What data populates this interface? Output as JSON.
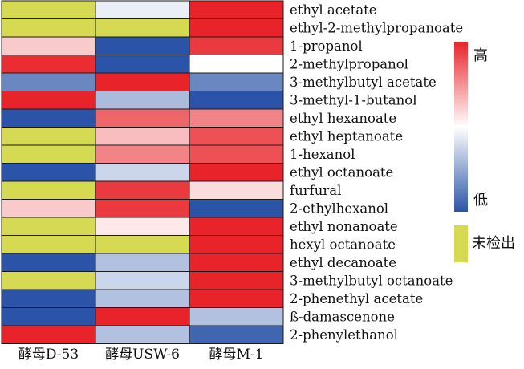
{
  "chart_data": {
    "type": "heatmap",
    "columns": [
      "酵母D-53",
      "酵母USW-6",
      "酵母M-1"
    ],
    "rows": [
      "ethyl acetate",
      "ethyl-2-methylpropanoate",
      "1-propanol",
      "2-methylpropanol",
      "3-methylbutyl acetate",
      "3-methyl-1-butanol",
      "ethyl hexanoate",
      "ethyl heptanoate",
      "1-hexanol",
      "ethyl octanoate",
      "furfural",
      "2-ethylhexanol",
      "ethyl nonanoate",
      "hexyl octanoate",
      "ethyl decanoate",
      "3-methylbutyl octanoate",
      "2-phenethyl acetate",
      "ß-damascenone",
      "2-phenylethanol"
    ],
    "values": [
      [
        null,
        0.45,
        1.0
      ],
      [
        null,
        null,
        1.0
      ],
      [
        0.62,
        0.0,
        0.95
      ],
      [
        0.98,
        0.0,
        0.5
      ],
      [
        0.15,
        1.0,
        0.15
      ],
      [
        1.0,
        0.3,
        0.0
      ],
      [
        0.0,
        0.85,
        0.78
      ],
      [
        null,
        0.65,
        0.9
      ],
      [
        null,
        0.78,
        0.9
      ],
      [
        0.0,
        0.38,
        1.0
      ],
      [
        null,
        0.95,
        0.58
      ],
      [
        0.62,
        0.95,
        0.0
      ],
      [
        null,
        0.55,
        1.0
      ],
      [
        null,
        null,
        1.0
      ],
      [
        0.0,
        0.32,
        1.0
      ],
      [
        null,
        0.38,
        1.0
      ],
      [
        0.0,
        0.32,
        1.0
      ],
      [
        0.0,
        1.0,
        0.32
      ],
      [
        1.0,
        0.32,
        0.05
      ]
    ],
    "value_range": [
      0,
      1
    ],
    "color_scale": {
      "low": "#2b54a8",
      "mid": "#ffffff",
      "high": "#e8242a"
    },
    "not_detected_color": "#d6d952",
    "legend": {
      "high": "高",
      "low": "低",
      "not_detected": "未检出"
    }
  }
}
